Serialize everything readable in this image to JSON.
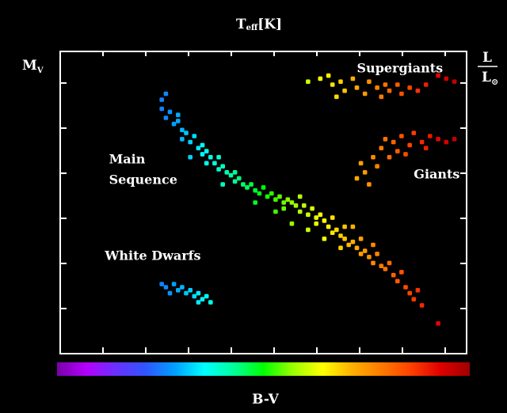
{
  "chart_data": {
    "type": "scatter",
    "title": "",
    "top_label": {
      "main": "T",
      "sub": "eff",
      "unit": "[K]"
    },
    "left_label": {
      "main": "M",
      "sub": "V"
    },
    "right_label": {
      "numerator": "L",
      "denominator": "L",
      "denominator_symbol": "⊙"
    },
    "bottom_label": "B-V",
    "xlim": [
      0,
      10
    ],
    "ylim": [
      0,
      10
    ],
    "grid": false,
    "region_labels": [
      {
        "name": "main-sequence",
        "lines": [
          "Main",
          "Sequence"
        ],
        "x": 1.2,
        "y": 6.3
      },
      {
        "name": "white-dwarfs",
        "lines": [
          "White Dwarfs"
        ],
        "x": 1.1,
        "y": 3.1
      },
      {
        "name": "supergiants",
        "lines": [
          "Supergiants"
        ],
        "x": 7.3,
        "y": 9.3
      },
      {
        "name": "giants",
        "lines": [
          "Giants"
        ],
        "x": 8.7,
        "y": 5.8
      }
    ],
    "series": [
      {
        "key": "main-sequence",
        "points": [
          [
            2.5,
            8.4
          ],
          [
            2.6,
            8.6
          ],
          [
            2.5,
            8.1
          ],
          [
            2.7,
            8.0
          ],
          [
            2.6,
            7.8
          ],
          [
            2.8,
            7.6
          ],
          [
            2.9,
            7.7
          ],
          [
            3.0,
            7.4
          ],
          [
            3.1,
            7.3
          ],
          [
            3.0,
            7.1
          ],
          [
            3.2,
            7.0
          ],
          [
            3.3,
            7.2
          ],
          [
            3.4,
            6.8
          ],
          [
            3.5,
            6.9
          ],
          [
            3.5,
            6.6
          ],
          [
            3.6,
            6.7
          ],
          [
            3.7,
            6.5
          ],
          [
            3.8,
            6.3
          ],
          [
            3.9,
            6.5
          ],
          [
            3.9,
            6.1
          ],
          [
            4.0,
            6.2
          ],
          [
            4.1,
            6.0
          ],
          [
            4.2,
            5.9
          ],
          [
            4.3,
            6.0
          ],
          [
            4.3,
            5.7
          ],
          [
            4.4,
            5.8
          ],
          [
            4.5,
            5.6
          ],
          [
            4.6,
            5.5
          ],
          [
            4.7,
            5.6
          ],
          [
            4.8,
            5.4
          ],
          [
            4.9,
            5.3
          ],
          [
            5.0,
            5.5
          ],
          [
            5.1,
            5.2
          ],
          [
            5.2,
            5.3
          ],
          [
            5.3,
            5.1
          ],
          [
            5.4,
            5.2
          ],
          [
            5.5,
            5.0
          ],
          [
            5.5,
            4.8
          ],
          [
            5.6,
            5.1
          ],
          [
            5.7,
            5.0
          ],
          [
            5.8,
            4.9
          ],
          [
            5.9,
            5.2
          ],
          [
            5.9,
            4.7
          ],
          [
            6.0,
            4.9
          ],
          [
            6.1,
            4.6
          ],
          [
            6.2,
            4.8
          ],
          [
            6.3,
            4.5
          ],
          [
            6.3,
            4.3
          ],
          [
            6.4,
            4.6
          ],
          [
            6.5,
            4.4
          ],
          [
            6.6,
            4.2
          ],
          [
            6.7,
            4.5
          ],
          [
            6.7,
            4.0
          ],
          [
            6.8,
            4.1
          ],
          [
            6.9,
            3.9
          ],
          [
            7.0,
            3.8
          ],
          [
            7.0,
            4.2
          ],
          [
            7.1,
            3.6
          ],
          [
            7.2,
            3.7
          ],
          [
            7.3,
            3.5
          ],
          [
            7.4,
            3.3
          ],
          [
            7.4,
            3.8
          ],
          [
            7.5,
            3.4
          ],
          [
            7.6,
            3.2
          ],
          [
            7.7,
            3.0
          ],
          [
            7.8,
            3.3
          ],
          [
            7.9,
            2.9
          ],
          [
            8.0,
            2.8
          ],
          [
            8.1,
            3.0
          ],
          [
            8.2,
            2.6
          ],
          [
            8.3,
            2.4
          ],
          [
            8.4,
            2.7
          ],
          [
            8.5,
            2.2
          ],
          [
            8.6,
            2.0
          ],
          [
            8.7,
            1.8
          ],
          [
            8.8,
            2.1
          ],
          [
            8.9,
            1.6
          ],
          [
            9.3,
            1.0
          ],
          [
            5.7,
            4.3
          ],
          [
            6.5,
            3.8
          ],
          [
            3.2,
            6.5
          ],
          [
            4.0,
            5.6
          ],
          [
            4.8,
            5.0
          ],
          [
            5.3,
            4.7
          ],
          [
            6.1,
            4.1
          ],
          [
            7.2,
            4.2
          ],
          [
            6.9,
            3.5
          ],
          [
            7.7,
            3.6
          ],
          [
            2.9,
            7.9
          ],
          [
            3.6,
            6.3
          ]
        ]
      },
      {
        "key": "white-dwarfs",
        "points": [
          [
            2.5,
            2.3
          ],
          [
            2.6,
            2.2
          ],
          [
            2.8,
            2.3
          ],
          [
            2.9,
            2.1
          ],
          [
            3.0,
            2.2
          ],
          [
            3.1,
            2.0
          ],
          [
            3.2,
            2.1
          ],
          [
            3.3,
            1.9
          ],
          [
            3.4,
            2.0
          ],
          [
            3.5,
            1.8
          ],
          [
            3.6,
            1.9
          ],
          [
            3.7,
            1.7
          ],
          [
            2.7,
            2.0
          ],
          [
            3.4,
            1.7
          ]
        ]
      },
      {
        "key": "supergiants",
        "points": [
          [
            6.1,
            9.0
          ],
          [
            6.4,
            9.1
          ],
          [
            6.6,
            9.2
          ],
          [
            6.7,
            8.9
          ],
          [
            6.9,
            9.0
          ],
          [
            7.0,
            8.7
          ],
          [
            7.2,
            9.1
          ],
          [
            7.3,
            8.8
          ],
          [
            7.5,
            8.6
          ],
          [
            7.6,
            9.0
          ],
          [
            7.8,
            8.8
          ],
          [
            7.9,
            8.5
          ],
          [
            8.1,
            8.7
          ],
          [
            8.3,
            8.9
          ],
          [
            8.4,
            8.6
          ],
          [
            8.6,
            8.8
          ],
          [
            8.8,
            8.7
          ],
          [
            9.0,
            8.9
          ],
          [
            9.3,
            9.2
          ],
          [
            9.5,
            9.1
          ],
          [
            9.7,
            9.0
          ],
          [
            6.8,
            8.5
          ],
          [
            8.0,
            8.9
          ]
        ]
      },
      {
        "key": "giants",
        "points": [
          [
            7.3,
            5.8
          ],
          [
            7.5,
            6.0
          ],
          [
            7.6,
            5.6
          ],
          [
            7.4,
            6.3
          ],
          [
            7.7,
            6.5
          ],
          [
            7.9,
            6.8
          ],
          [
            8.0,
            7.1
          ],
          [
            8.2,
            7.0
          ],
          [
            8.3,
            6.7
          ],
          [
            8.4,
            7.2
          ],
          [
            8.6,
            6.9
          ],
          [
            8.7,
            7.3
          ],
          [
            8.9,
            7.0
          ],
          [
            9.1,
            7.2
          ],
          [
            9.3,
            7.1
          ],
          [
            9.5,
            7.0
          ],
          [
            9.7,
            7.1
          ],
          [
            8.1,
            6.5
          ],
          [
            8.5,
            6.6
          ],
          [
            9.0,
            6.8
          ],
          [
            7.8,
            6.2
          ]
        ]
      }
    ],
    "colorbar": {
      "stops": [
        "#7a00a8",
        "#b400ff",
        "#6a30ff",
        "#2f55ff",
        "#00a0ff",
        "#00ffff",
        "#00ff9a",
        "#00ff00",
        "#9aff00",
        "#ffff00",
        "#ffb000",
        "#ff7a00",
        "#ff4000",
        "#e00000",
        "#a00000"
      ]
    }
  }
}
